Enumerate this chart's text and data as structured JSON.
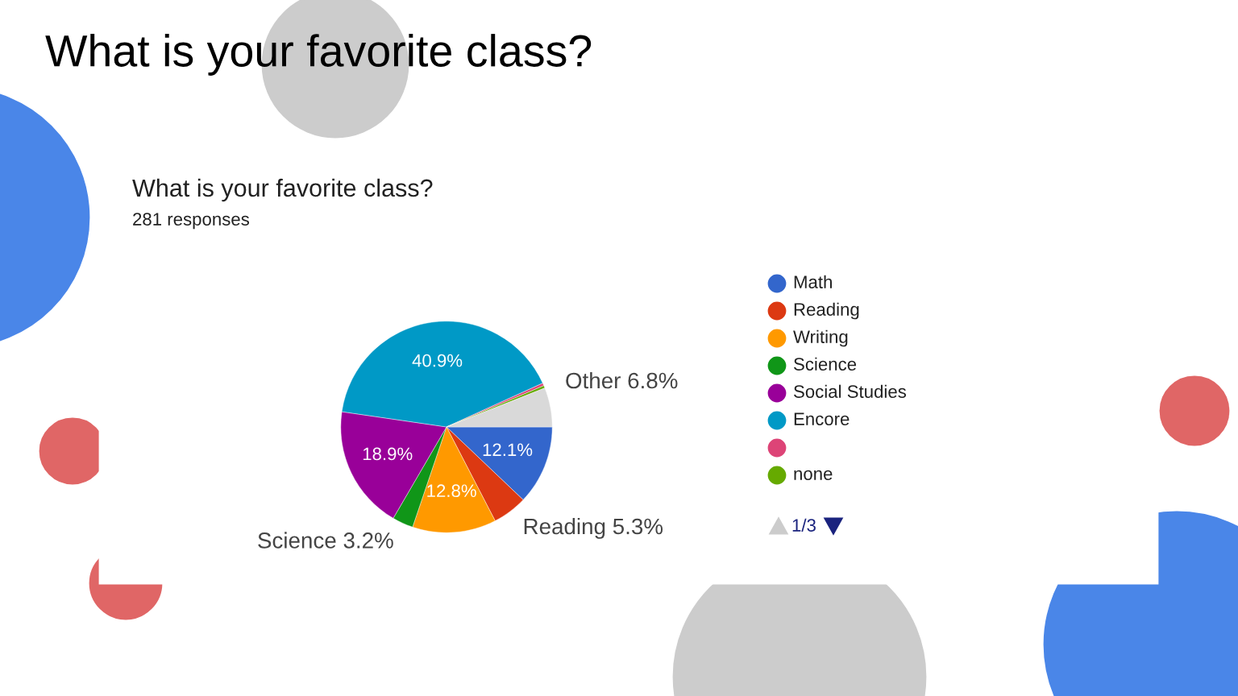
{
  "chart_data": {
    "type": "pie",
    "title": "What is your favorite class?",
    "categories": [
      "Math",
      "Reading",
      "Writing",
      "Science",
      "Social Studies",
      "Encore",
      null,
      "none",
      null
    ],
    "values": [
      12.1,
      5.3,
      12.8,
      3.2,
      18.9,
      40.9,
      0.4,
      0.4,
      6.0
    ],
    "colors": [
      "#3366cc",
      "#dc3912",
      "#ff9900",
      "#109618",
      "#990099",
      "#0099c6",
      "#dd4477",
      "#66aa00",
      "#d9d9d9"
    ],
    "value_labels": [
      "12.1%",
      "Reading 5.3%",
      "12.8%",
      "Science 3.2%",
      "18.9%",
      "40.9%",
      null,
      null,
      null
    ],
    "annotations": [
      "What is your favorite class?",
      "281 responses",
      "Other 6.8%",
      "1/3"
    ],
    "legend": "right"
  }
}
